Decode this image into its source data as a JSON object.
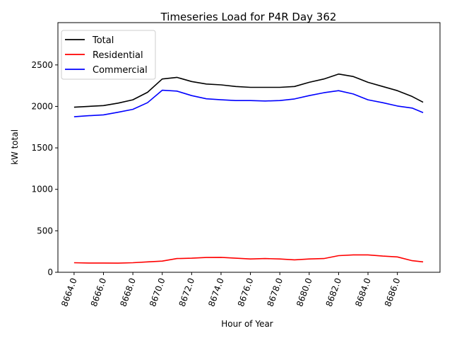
{
  "chart_data": {
    "type": "line",
    "title": "Timeseries Load for P4R   Day 362",
    "xlabel": "Hour of Year",
    "ylabel": "kW total",
    "xlim": [
      8662.9,
      8688.9
    ],
    "ylim": [
      0,
      3010
    ],
    "xticks": [
      8664,
      8666,
      8668,
      8670,
      8672,
      8674,
      8676,
      8678,
      8680,
      8682,
      8684,
      8686
    ],
    "xtick_labels": [
      "8664.0",
      "8666.0",
      "8668.0",
      "8670.0",
      "8672.0",
      "8674.0",
      "8676.0",
      "8678.0",
      "8680.0",
      "8682.0",
      "8684.0",
      "8686.0"
    ],
    "yticks": [
      0,
      500,
      1000,
      1500,
      2000,
      2500
    ],
    "ytick_labels": [
      "0",
      "500",
      "1000",
      "1500",
      "2000",
      "2500"
    ],
    "grid": false,
    "legend_position": "top-left",
    "x": [
      8664,
      8665,
      8666,
      8667,
      8668,
      8669,
      8670,
      8671,
      8672,
      8673,
      8674,
      8675,
      8676,
      8677,
      8678,
      8679,
      8680,
      8681,
      8682,
      8683,
      8684,
      8685,
      8686,
      8687,
      8687.75
    ],
    "series": [
      {
        "name": "Total",
        "color": "#000000",
        "values": [
          1990,
          2000,
          2010,
          2040,
          2080,
          2170,
          2330,
          2350,
          2300,
          2270,
          2260,
          2240,
          2230,
          2230,
          2230,
          2240,
          2290,
          2330,
          2390,
          2360,
          2290,
          2240,
          2190,
          2120,
          2050
        ]
      },
      {
        "name": "Residential",
        "color": "#ff0000",
        "values": [
          115,
          112,
          112,
          110,
          115,
          125,
          135,
          165,
          170,
          178,
          180,
          170,
          160,
          165,
          160,
          150,
          160,
          165,
          200,
          210,
          210,
          195,
          185,
          140,
          125
        ]
      },
      {
        "name": "Commercial",
        "color": "#0000ff",
        "values": [
          1875,
          1888,
          1898,
          1930,
          1965,
          2045,
          2195,
          2185,
          2130,
          2092,
          2080,
          2070,
          2070,
          2065,
          2070,
          2090,
          2130,
          2165,
          2190,
          2150,
          2080,
          2045,
          2005,
          1980,
          1925
        ]
      }
    ]
  }
}
